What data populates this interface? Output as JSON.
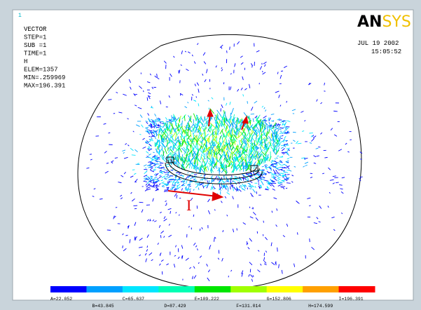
{
  "plot_number": "1",
  "info": [
    "VECTOR",
    "STEP=1",
    "SUB =1",
    "TIME=1",
    "H",
    "ELEM=1357",
    "MIN=.259969",
    "MAX=196.391"
  ],
  "logo": {
    "bold": "AN",
    "light": "SYS"
  },
  "date": "JUL 19 2002",
  "time": "15:05:52",
  "current_label": "I",
  "legend": [
    {
      "label": "A=22.052",
      "color": "#0000ff"
    },
    {
      "label": "B=43.845",
      "color": "#00a0ff"
    },
    {
      "label": "C=65.637",
      "color": "#00e6ff"
    },
    {
      "label": "D=87.429",
      "color": "#00ffb4"
    },
    {
      "label": "E=109.222",
      "color": "#00e600"
    },
    {
      "label": "F=131.014",
      "color": "#a0ff00"
    },
    {
      "label": "G=152.806",
      "color": "#ffff00"
    },
    {
      "label": "H=174.599",
      "color": "#ffa000"
    },
    {
      "label": "I=196.391",
      "color": "#ff0000"
    }
  ]
}
